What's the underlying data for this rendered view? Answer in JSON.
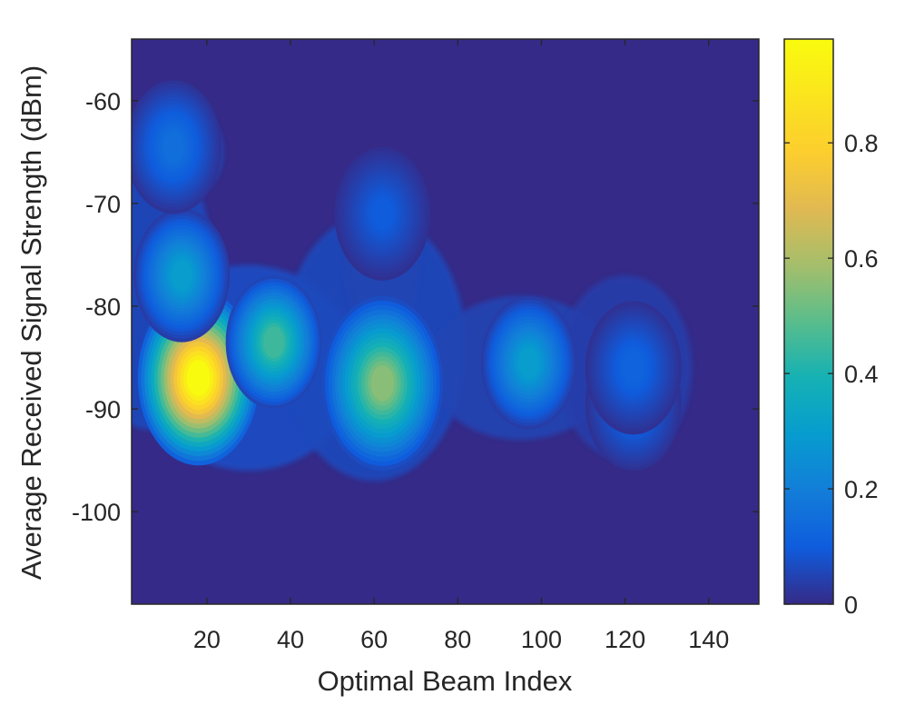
{
  "chart_data": {
    "type": "heatmap",
    "subtype": "filled-contour density",
    "title": "",
    "xlabel": "Optimal Beam Index",
    "ylabel": "Average Received Signal Strength (dBm)",
    "xlim": [
      2,
      152
    ],
    "ylim": [
      -109,
      -54
    ],
    "x_ticks": [
      20,
      40,
      60,
      80,
      100,
      120,
      140
    ],
    "y_ticks": [
      -60,
      -70,
      -80,
      -90,
      -100
    ],
    "x_tick_labels": [
      "20",
      "40",
      "60",
      "80",
      "100",
      "120",
      "140"
    ],
    "y_tick_labels": [
      "-60",
      "-70",
      "-80",
      "-90",
      "-100"
    ],
    "colorbar": {
      "colormap": "parula",
      "range": [
        0,
        0.98
      ],
      "ticks": [
        0,
        0.2,
        0.4,
        0.6,
        0.8
      ],
      "tick_labels": [
        "0",
        "0.2",
        "0.4",
        "0.6",
        "0.8"
      ]
    },
    "grid": false,
    "density_peaks": [
      {
        "x": 18,
        "y": -87,
        "value": 0.98
      },
      {
        "x": 36,
        "y": -83.5,
        "value": 0.45
      },
      {
        "x": 62,
        "y": -87.5,
        "value": 0.55
      },
      {
        "x": 97,
        "y": -85.5,
        "value": 0.3
      },
      {
        "x": 14,
        "y": -77,
        "value": 0.3
      },
      {
        "x": 12,
        "y": -64.5,
        "value": 0.15
      },
      {
        "x": 122,
        "y": -89.5,
        "value": 0.13
      },
      {
        "x": 122,
        "y": -86,
        "value": 0.12
      },
      {
        "x": 62,
        "y": -71,
        "value": 0.1
      }
    ]
  }
}
